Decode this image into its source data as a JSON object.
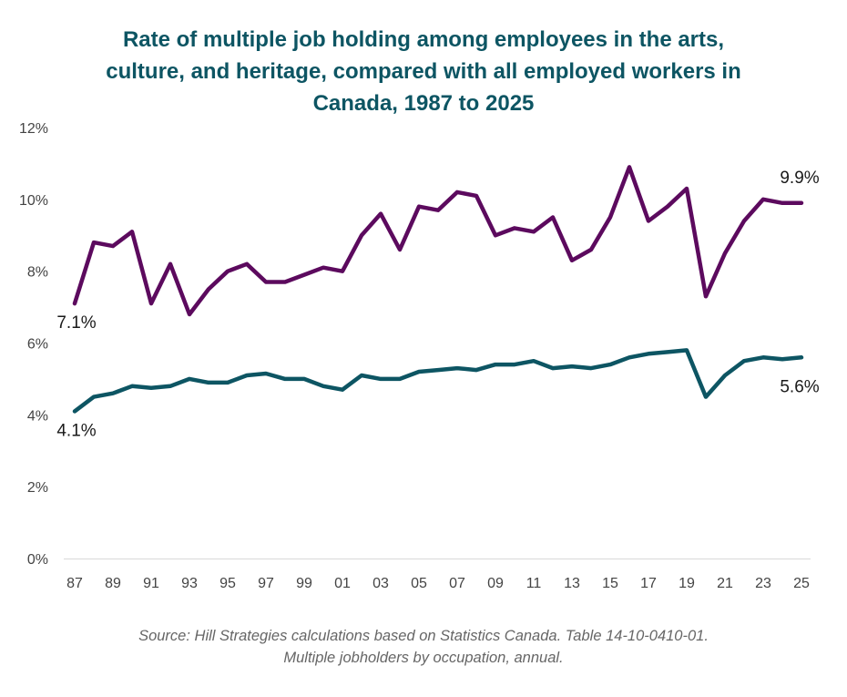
{
  "chart_data": {
    "type": "line",
    "title_lines": [
      "Rate of multiple job holding among employees in the arts,",
      "culture, and heritage, compared with all employed workers in",
      "Canada, 1987 to 2025"
    ],
    "xlabel": "",
    "ylabel": "",
    "x": [
      1987,
      1988,
      1989,
      1990,
      1991,
      1992,
      1993,
      1994,
      1995,
      1996,
      1997,
      1998,
      1999,
      2000,
      2001,
      2002,
      2003,
      2004,
      2005,
      2006,
      2007,
      2008,
      2009,
      2010,
      2011,
      2012,
      2013,
      2014,
      2015,
      2016,
      2017,
      2018,
      2019,
      2020,
      2021,
      2022,
      2023,
      2024,
      2025
    ],
    "x_tick_labels": [
      "87",
      "89",
      "91",
      "93",
      "95",
      "97",
      "99",
      "01",
      "03",
      "05",
      "07",
      "09",
      "11",
      "13",
      "15",
      "17",
      "19",
      "21",
      "23",
      "25"
    ],
    "y_tick_labels": [
      "0%",
      "2%",
      "4%",
      "6%",
      "8%",
      "10%",
      "12%"
    ],
    "ylim": [
      0,
      12
    ],
    "grid": false,
    "series": [
      {
        "color": "#5c0a5e",
        "values": [
          7.1,
          8.8,
          8.7,
          9.1,
          7.1,
          8.2,
          6.8,
          7.5,
          8.0,
          8.2,
          7.7,
          7.7,
          7.9,
          8.1,
          8.0,
          9.0,
          9.6,
          8.6,
          9.8,
          9.7,
          10.2,
          10.1,
          9.0,
          9.2,
          9.1,
          9.5,
          8.3,
          8.6,
          9.5,
          10.9,
          9.4,
          9.8,
          10.3,
          7.3,
          8.5,
          9.4,
          10.0,
          9.9,
          9.9
        ]
      },
      {
        "color": "#0d5563",
        "values": [
          4.1,
          4.5,
          4.6,
          4.8,
          4.75,
          4.8,
          5.0,
          4.9,
          4.9,
          5.1,
          5.15,
          5.0,
          5.0,
          4.8,
          4.7,
          5.1,
          5.0,
          5.0,
          5.2,
          5.25,
          5.3,
          5.25,
          5.4,
          5.4,
          5.5,
          5.3,
          5.35,
          5.3,
          5.4,
          5.6,
          5.7,
          5.75,
          5.8,
          4.5,
          5.1,
          5.5,
          5.6,
          5.55,
          5.6
        ]
      }
    ],
    "annotations": [
      {
        "text": "7.1%",
        "series": 0,
        "position": "start"
      },
      {
        "text": "9.9%",
        "series": 0,
        "position": "end"
      },
      {
        "text": "4.1%",
        "series": 1,
        "position": "start"
      },
      {
        "text": "5.6%",
        "series": 1,
        "position": "end"
      }
    ]
  },
  "source_lines": [
    "Source: Hill Strategies calculations based on Statistics Canada. Table 14-10-0410-01.",
    "Multiple jobholders by occupation, annual."
  ]
}
